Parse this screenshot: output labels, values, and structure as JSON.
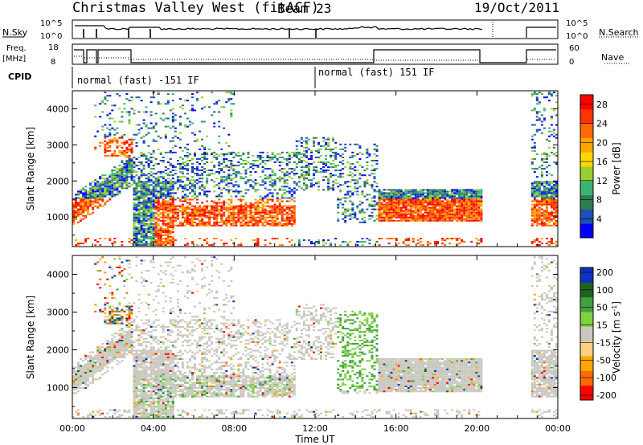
{
  "header": {
    "station": "Christmas Valley West (fitACF)",
    "beam": "Beam 23",
    "date": "19/Oct/2011"
  },
  "panels": {
    "nsky_label": "N.Sky",
    "nsearch_label": "N.Search",
    "freq_label_1": "Freq.",
    "freq_label_2": "[MHz]",
    "nave_label": "Nave",
    "cpid_label": "CPID",
    "cpid_1": "normal (fast) -151 IF",
    "cpid_2": "normal (fast) 151 IF",
    "nsky_ticks": [
      "10^5",
      "10^0"
    ],
    "nsearch_ticks": [
      "10^5",
      "10^0"
    ],
    "freq_ticks": [
      "18",
      "8"
    ],
    "nave_ticks": [
      "60",
      "0"
    ]
  },
  "colors": {
    "power_scale": [
      "#0000ff",
      "#1f4fb5",
      "#2e7d52",
      "#3cb371",
      "#9acd32",
      "#ffd700",
      "#ffa500",
      "#ff6a00",
      "#ff3300",
      "#ff0000"
    ],
    "velocity_scale": [
      "#1030c0",
      "#206020",
      "#40a040",
      "#80d040",
      "#c8c8c0",
      "#ffd080",
      "#ffa500",
      "#ff6a00",
      "#ff0000"
    ]
  },
  "chart_data": [
    {
      "type": "heatmap",
      "quantity": "power",
      "xlabel": "Time UT",
      "ylabel": "Slant Range [km]",
      "x_ticks": [
        "00:00",
        "04:00",
        "08:00",
        "12:00",
        "16:00",
        "20:00",
        "00:00"
      ],
      "x_range_hours": [
        0,
        24
      ],
      "y_range": [
        180,
        4500
      ],
      "y_ticks": [
        1000,
        2000,
        3000,
        4000
      ],
      "colorbar_label": "Power [dB]",
      "colorbar_ticks": [
        4,
        8,
        12,
        16,
        20,
        24,
        28
      ],
      "colorbar_range": [
        0,
        30
      ]
    },
    {
      "type": "heatmap",
      "quantity": "velocity",
      "xlabel": "Time UT",
      "ylabel": "Slant Range [km]",
      "x_ticks": [
        "00:00",
        "04:00",
        "08:00",
        "12:00",
        "16:00",
        "20:00",
        "00:00"
      ],
      "x_range_hours": [
        0,
        24
      ],
      "y_range": [
        180,
        4500
      ],
      "y_ticks": [
        1000,
        2000,
        3000,
        4000
      ],
      "colorbar_label": "Velocity [m s^-1]",
      "colorbar_ticks": [
        200,
        100,
        50,
        15,
        -15,
        -50,
        -100,
        -200
      ]
    }
  ]
}
